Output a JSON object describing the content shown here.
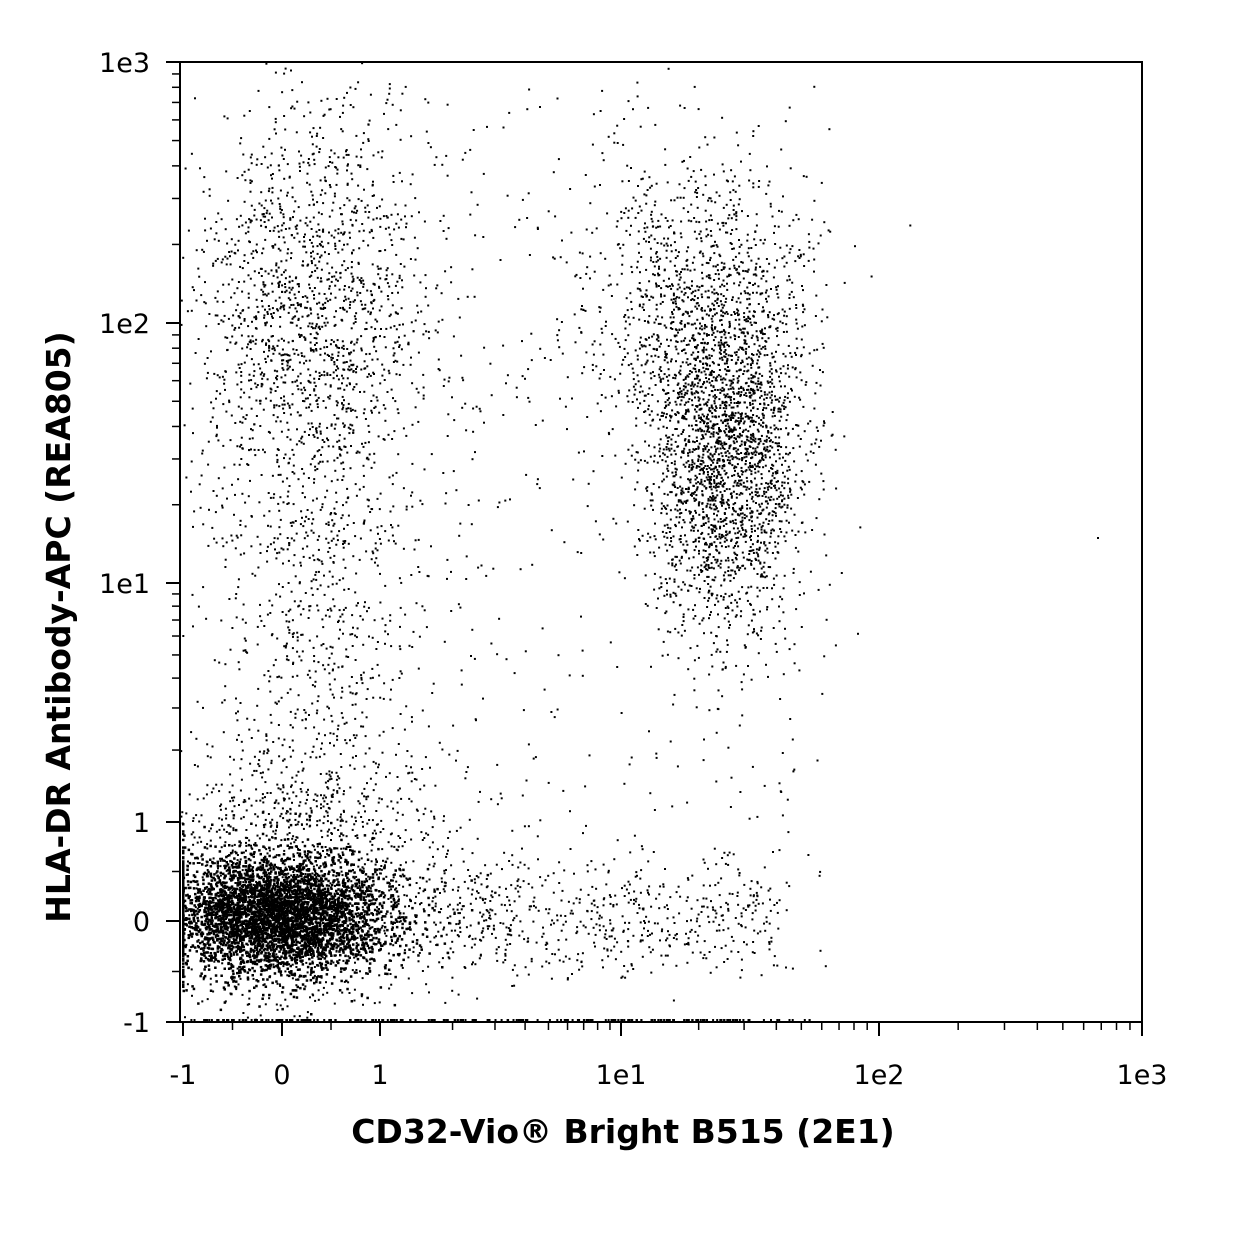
{
  "chart_data": {
    "type": "scatter",
    "subtype": "flow-cytometry-dot-plot",
    "xlabel": "CD32-Vio® Bright B515 (2E1)",
    "ylabel": "HLA-DR Antibody-APC (REA805)",
    "x_scale": "biexponential",
    "y_scale": "biexponential",
    "xlim": [
      -1,
      1000
    ],
    "ylim": [
      -1,
      1000
    ],
    "x_ticks": [
      {
        "value": -1,
        "label": "-1"
      },
      {
        "value": 0,
        "label": "0"
      },
      {
        "value": 1,
        "label": "1"
      },
      {
        "value": 10,
        "label": "1e1"
      },
      {
        "value": 100,
        "label": "1e2"
      },
      {
        "value": 1000,
        "label": "1e3"
      }
    ],
    "y_ticks": [
      {
        "value": -1,
        "label": "-1"
      },
      {
        "value": 0,
        "label": "0"
      },
      {
        "value": 1,
        "label": "1"
      },
      {
        "value": 10,
        "label": "1e1"
      },
      {
        "value": 100,
        "label": "1e2"
      },
      {
        "value": 1000,
        "label": "1e3"
      }
    ],
    "grid": false,
    "legend": "none",
    "dot_color": "#000000",
    "populations": [
      {
        "x_center": 0.35,
        "y_center": 0.1,
        "x_spread": 0.5,
        "y_spread": 0.35,
        "relative_density": "very high"
      },
      {
        "x_center": 0.5,
        "y_center": 100,
        "x_spread": 0.6,
        "y_spread_decades": 0.45,
        "relative_density": "medium"
      },
      {
        "x_center": 25,
        "y_center": 30,
        "x_spread_decades": 0.18,
        "y_spread_decades": 0.4,
        "relative_density": "high"
      },
      {
        "x_center": 20,
        "y_center": 150,
        "x_spread_decades": 0.2,
        "y_spread_decades": 0.3,
        "relative_density": "medium"
      }
    ]
  }
}
